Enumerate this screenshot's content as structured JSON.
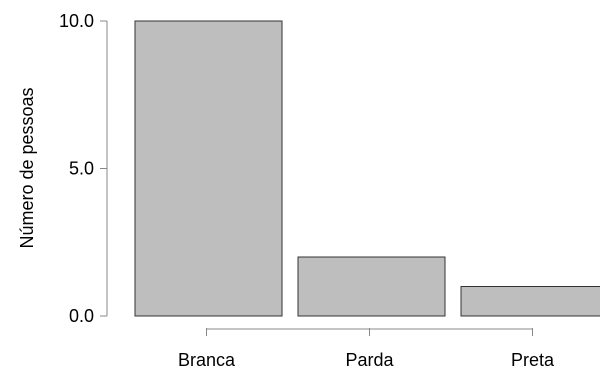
{
  "chart_data": {
    "type": "bar",
    "categories": [
      "Branca",
      "Parda",
      "Preta"
    ],
    "values": [
      10,
      2,
      1
    ],
    "title": "",
    "xlabel": "",
    "ylabel": "Número de pessoas",
    "ylim": [
      0,
      10
    ],
    "yticks": [
      0,
      5,
      10
    ],
    "ytick_labels": [
      "0.0",
      "5.0",
      "10.0"
    ],
    "bar_color": "#bebebe",
    "bar_stroke": "#333333",
    "axis_color": "#888888",
    "grid": false,
    "legend": "none"
  }
}
